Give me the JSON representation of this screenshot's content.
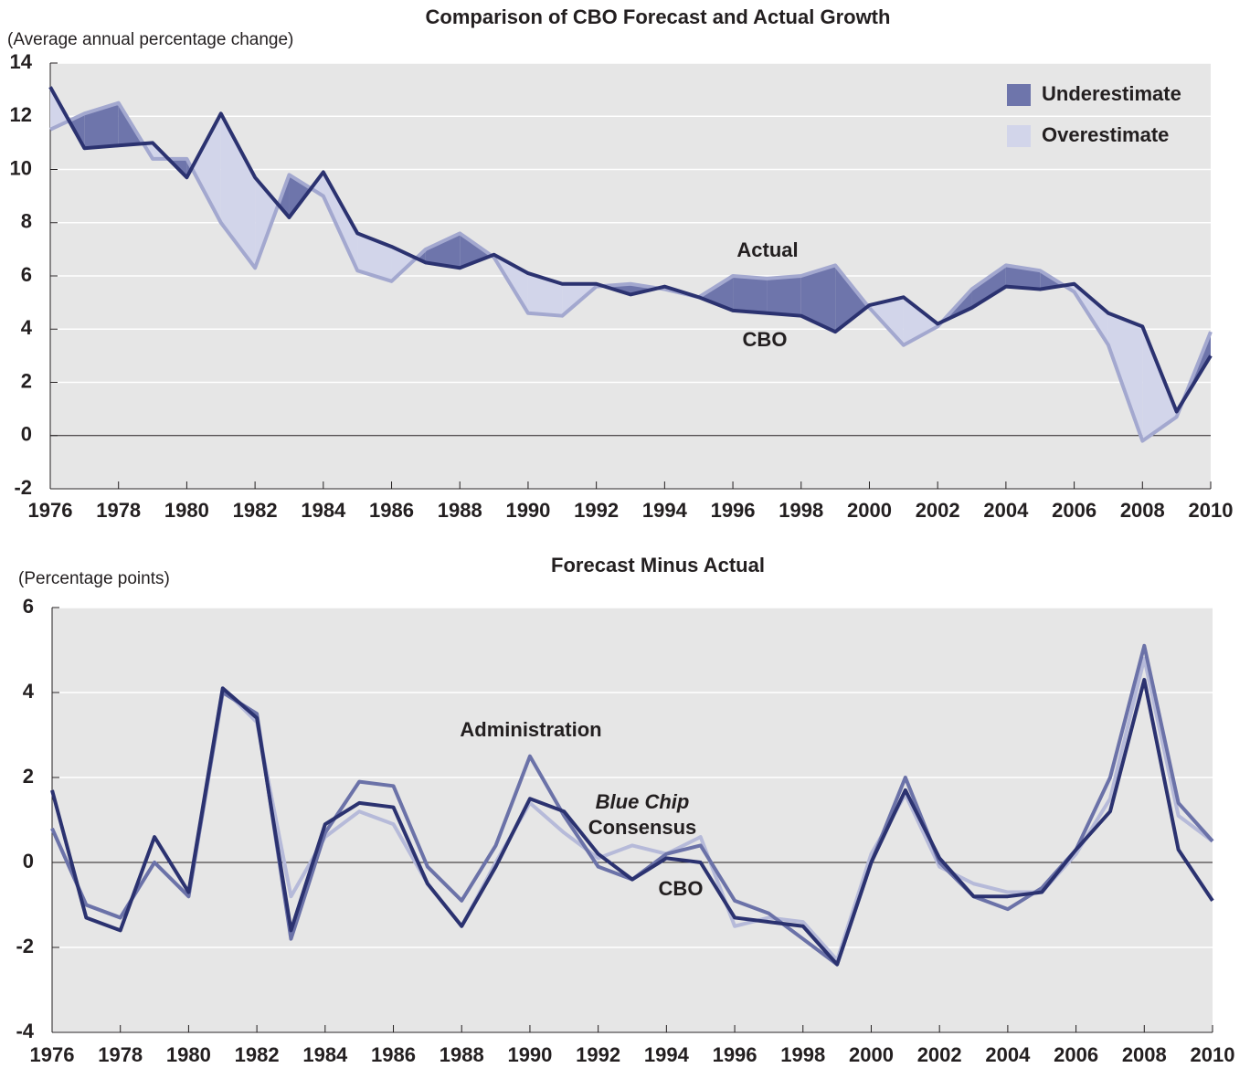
{
  "chart_data": [
    {
      "type": "line",
      "title": "Comparison of CBO Forecast and Actual Growth",
      "y_label": "(Average annual percentage change)",
      "x": [
        1976,
        1977,
        1978,
        1979,
        1980,
        1981,
        1982,
        1983,
        1984,
        1985,
        1986,
        1987,
        1988,
        1989,
        1990,
        1991,
        1992,
        1993,
        1994,
        1995,
        1996,
        1997,
        1998,
        1999,
        2000,
        2001,
        2002,
        2003,
        2004,
        2005,
        2006,
        2007,
        2008,
        2009,
        2010
      ],
      "series": [
        {
          "name": "Actual",
          "color": "#a3a8cf",
          "values": [
            11.5,
            12.1,
            12.5,
            10.4,
            10.4,
            8.0,
            6.3,
            9.8,
            9.0,
            6.2,
            5.8,
            7.0,
            7.6,
            6.7,
            4.6,
            4.5,
            5.6,
            5.7,
            5.5,
            5.2,
            6.0,
            5.9,
            6.0,
            6.4,
            4.8,
            3.4,
            4.1,
            5.5,
            6.4,
            6.2,
            5.4,
            3.4,
            -0.2,
            0.7,
            3.9
          ]
        },
        {
          "name": "CBO",
          "color": "#2b3270",
          "values": [
            13.1,
            10.8,
            10.9,
            11.0,
            9.7,
            12.1,
            9.7,
            8.2,
            9.9,
            7.6,
            7.1,
            6.5,
            6.3,
            6.8,
            6.1,
            5.7,
            5.7,
            5.3,
            5.6,
            5.2,
            4.7,
            4.6,
            4.5,
            3.9,
            4.9,
            5.2,
            4.2,
            4.8,
            5.6,
            5.5,
            5.7,
            4.6,
            4.1,
            0.9,
            3.0
          ]
        }
      ],
      "fill_between": [
        {
          "name": "Underestimate",
          "color": "#6e75ab"
        },
        {
          "name": "Overestimate",
          "color": "#d2d5ea"
        }
      ],
      "xlim": [
        1976,
        2010
      ],
      "xticks": [
        1976,
        1978,
        1980,
        1982,
        1984,
        1986,
        1988,
        1990,
        1992,
        1994,
        1996,
        1998,
        2000,
        2002,
        2004,
        2006,
        2008,
        2010
      ],
      "ylim": [
        -2,
        14
      ],
      "yticks": [
        -2,
        0,
        2,
        4,
        6,
        8,
        10,
        12,
        14
      ],
      "grid": true,
      "legend": "top-right"
    },
    {
      "type": "line",
      "title": "Forecast Minus Actual",
      "y_label": "(Percentage points)",
      "x": [
        1976,
        1977,
        1978,
        1979,
        1980,
        1981,
        1982,
        1983,
        1984,
        1985,
        1986,
        1987,
        1988,
        1989,
        1990,
        1991,
        1992,
        1993,
        1994,
        1995,
        1996,
        1997,
        1998,
        1999,
        2000,
        2001,
        2002,
        2003,
        2004,
        2005,
        2006,
        2007,
        2008,
        2009,
        2010
      ],
      "series": [
        {
          "name_lines": [
            "Blue Chip",
            "Consensus"
          ],
          "color": "#b6bad9",
          "values": [
            0.8,
            -1.0,
            -1.3,
            0.0,
            -0.8,
            4.1,
            3.3,
            -0.8,
            0.6,
            1.2,
            0.9,
            -0.5,
            -1.5,
            0.0,
            1.4,
            0.7,
            0.1,
            0.4,
            0.2,
            0.6,
            -1.5,
            -1.3,
            -1.4,
            -2.3,
            0.2,
            1.6,
            -0.1,
            -0.5,
            -0.7,
            -0.7,
            0.2,
            1.5,
            4.8,
            1.1,
            0.5
          ]
        },
        {
          "name": "Administration",
          "color": "#6b72a8",
          "values": [
            0.8,
            -1.0,
            -1.3,
            0.0,
            -0.8,
            4.0,
            3.5,
            -1.8,
            0.7,
            1.9,
            1.8,
            -0.1,
            -0.9,
            0.4,
            2.5,
            1.1,
            -0.1,
            -0.4,
            0.2,
            0.4,
            -0.9,
            -1.2,
            -1.8,
            -2.4,
            0.0,
            2.0,
            0.0,
            -0.8,
            -1.1,
            -0.6,
            0.3,
            2.0,
            5.1,
            1.4,
            0.5
          ]
        },
        {
          "name": "CBO",
          "color": "#2b3270",
          "values": [
            1.7,
            -1.3,
            -1.6,
            0.6,
            -0.7,
            4.1,
            3.4,
            -1.6,
            0.9,
            1.4,
            1.3,
            -0.5,
            -1.5,
            -0.1,
            1.5,
            1.2,
            0.2,
            -0.4,
            0.1,
            0.0,
            -1.3,
            -1.4,
            -1.5,
            -2.4,
            0.0,
            1.7,
            0.1,
            -0.8,
            -0.8,
            -0.7,
            0.3,
            1.2,
            4.3,
            0.3,
            -0.9
          ]
        }
      ],
      "xlim": [
        1976,
        2010
      ],
      "xticks": [
        1976,
        1978,
        1980,
        1982,
        1984,
        1986,
        1988,
        1990,
        1992,
        1994,
        1996,
        1998,
        2000,
        2002,
        2004,
        2006,
        2008,
        2010
      ],
      "ylim": [
        -4,
        6
      ],
      "yticks": [
        -4,
        -2,
        0,
        2,
        4,
        6
      ],
      "grid": true
    }
  ]
}
